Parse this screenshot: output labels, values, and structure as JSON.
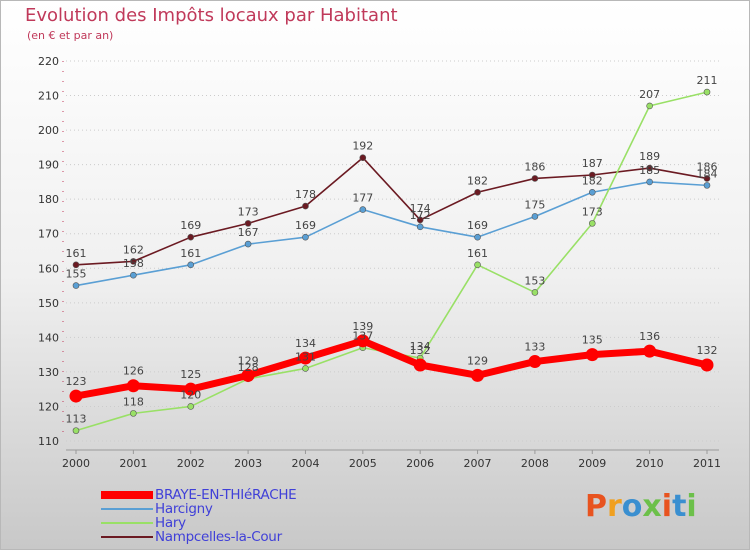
{
  "title": "Evolution des Impôts locaux par Habitant",
  "subtitle": "(en € et par an)",
  "logo": {
    "text": "Proxiti",
    "colors": [
      "#e8531f",
      "#f0a020",
      "#3a8fd0",
      "#6cc04a",
      "#e8531f",
      "#3a8fd0",
      "#6cc04a"
    ]
  },
  "chart_data": {
    "type": "line",
    "title": "Evolution des Impôts locaux par Habitant",
    "subtitle": "(en € et par an)",
    "xlabel": "",
    "ylabel": "",
    "x": [
      2000,
      2001,
      2002,
      2003,
      2004,
      2005,
      2006,
      2007,
      2008,
      2009,
      2010,
      2011
    ],
    "ylim": [
      110,
      220
    ],
    "yticks": [
      110,
      120,
      130,
      140,
      150,
      160,
      170,
      180,
      190,
      200,
      210,
      220
    ],
    "grid": "horizontal",
    "legend_position": "bottom-left",
    "series": [
      {
        "name": "Nampcelles-la-Cour",
        "color": "#6b1a22",
        "values": [
          161,
          162,
          169,
          173,
          178,
          192,
          174,
          182,
          186,
          187,
          189,
          186
        ]
      },
      {
        "name": "Harcigny",
        "color": "#5a9fd4",
        "values": [
          155,
          158,
          161,
          167,
          169,
          177,
          172,
          169,
          175,
          182,
          185,
          184
        ]
      },
      {
        "name": "Hary",
        "color": "#99e066",
        "values": [
          113,
          118,
          120,
          128,
          131,
          137,
          134,
          161,
          153,
          173,
          207,
          211
        ]
      },
      {
        "name": "BRAYE-EN-THIéRACHE",
        "color": "#ff0000",
        "values": [
          123,
          126,
          125,
          129,
          134,
          139,
          132,
          129,
          133,
          135,
          136,
          132
        ]
      }
    ],
    "legend": [
      "BRAYE-EN-THIéRACHE",
      "Harcigny",
      "Hary",
      "Nampcelles-la-Cour"
    ]
  }
}
